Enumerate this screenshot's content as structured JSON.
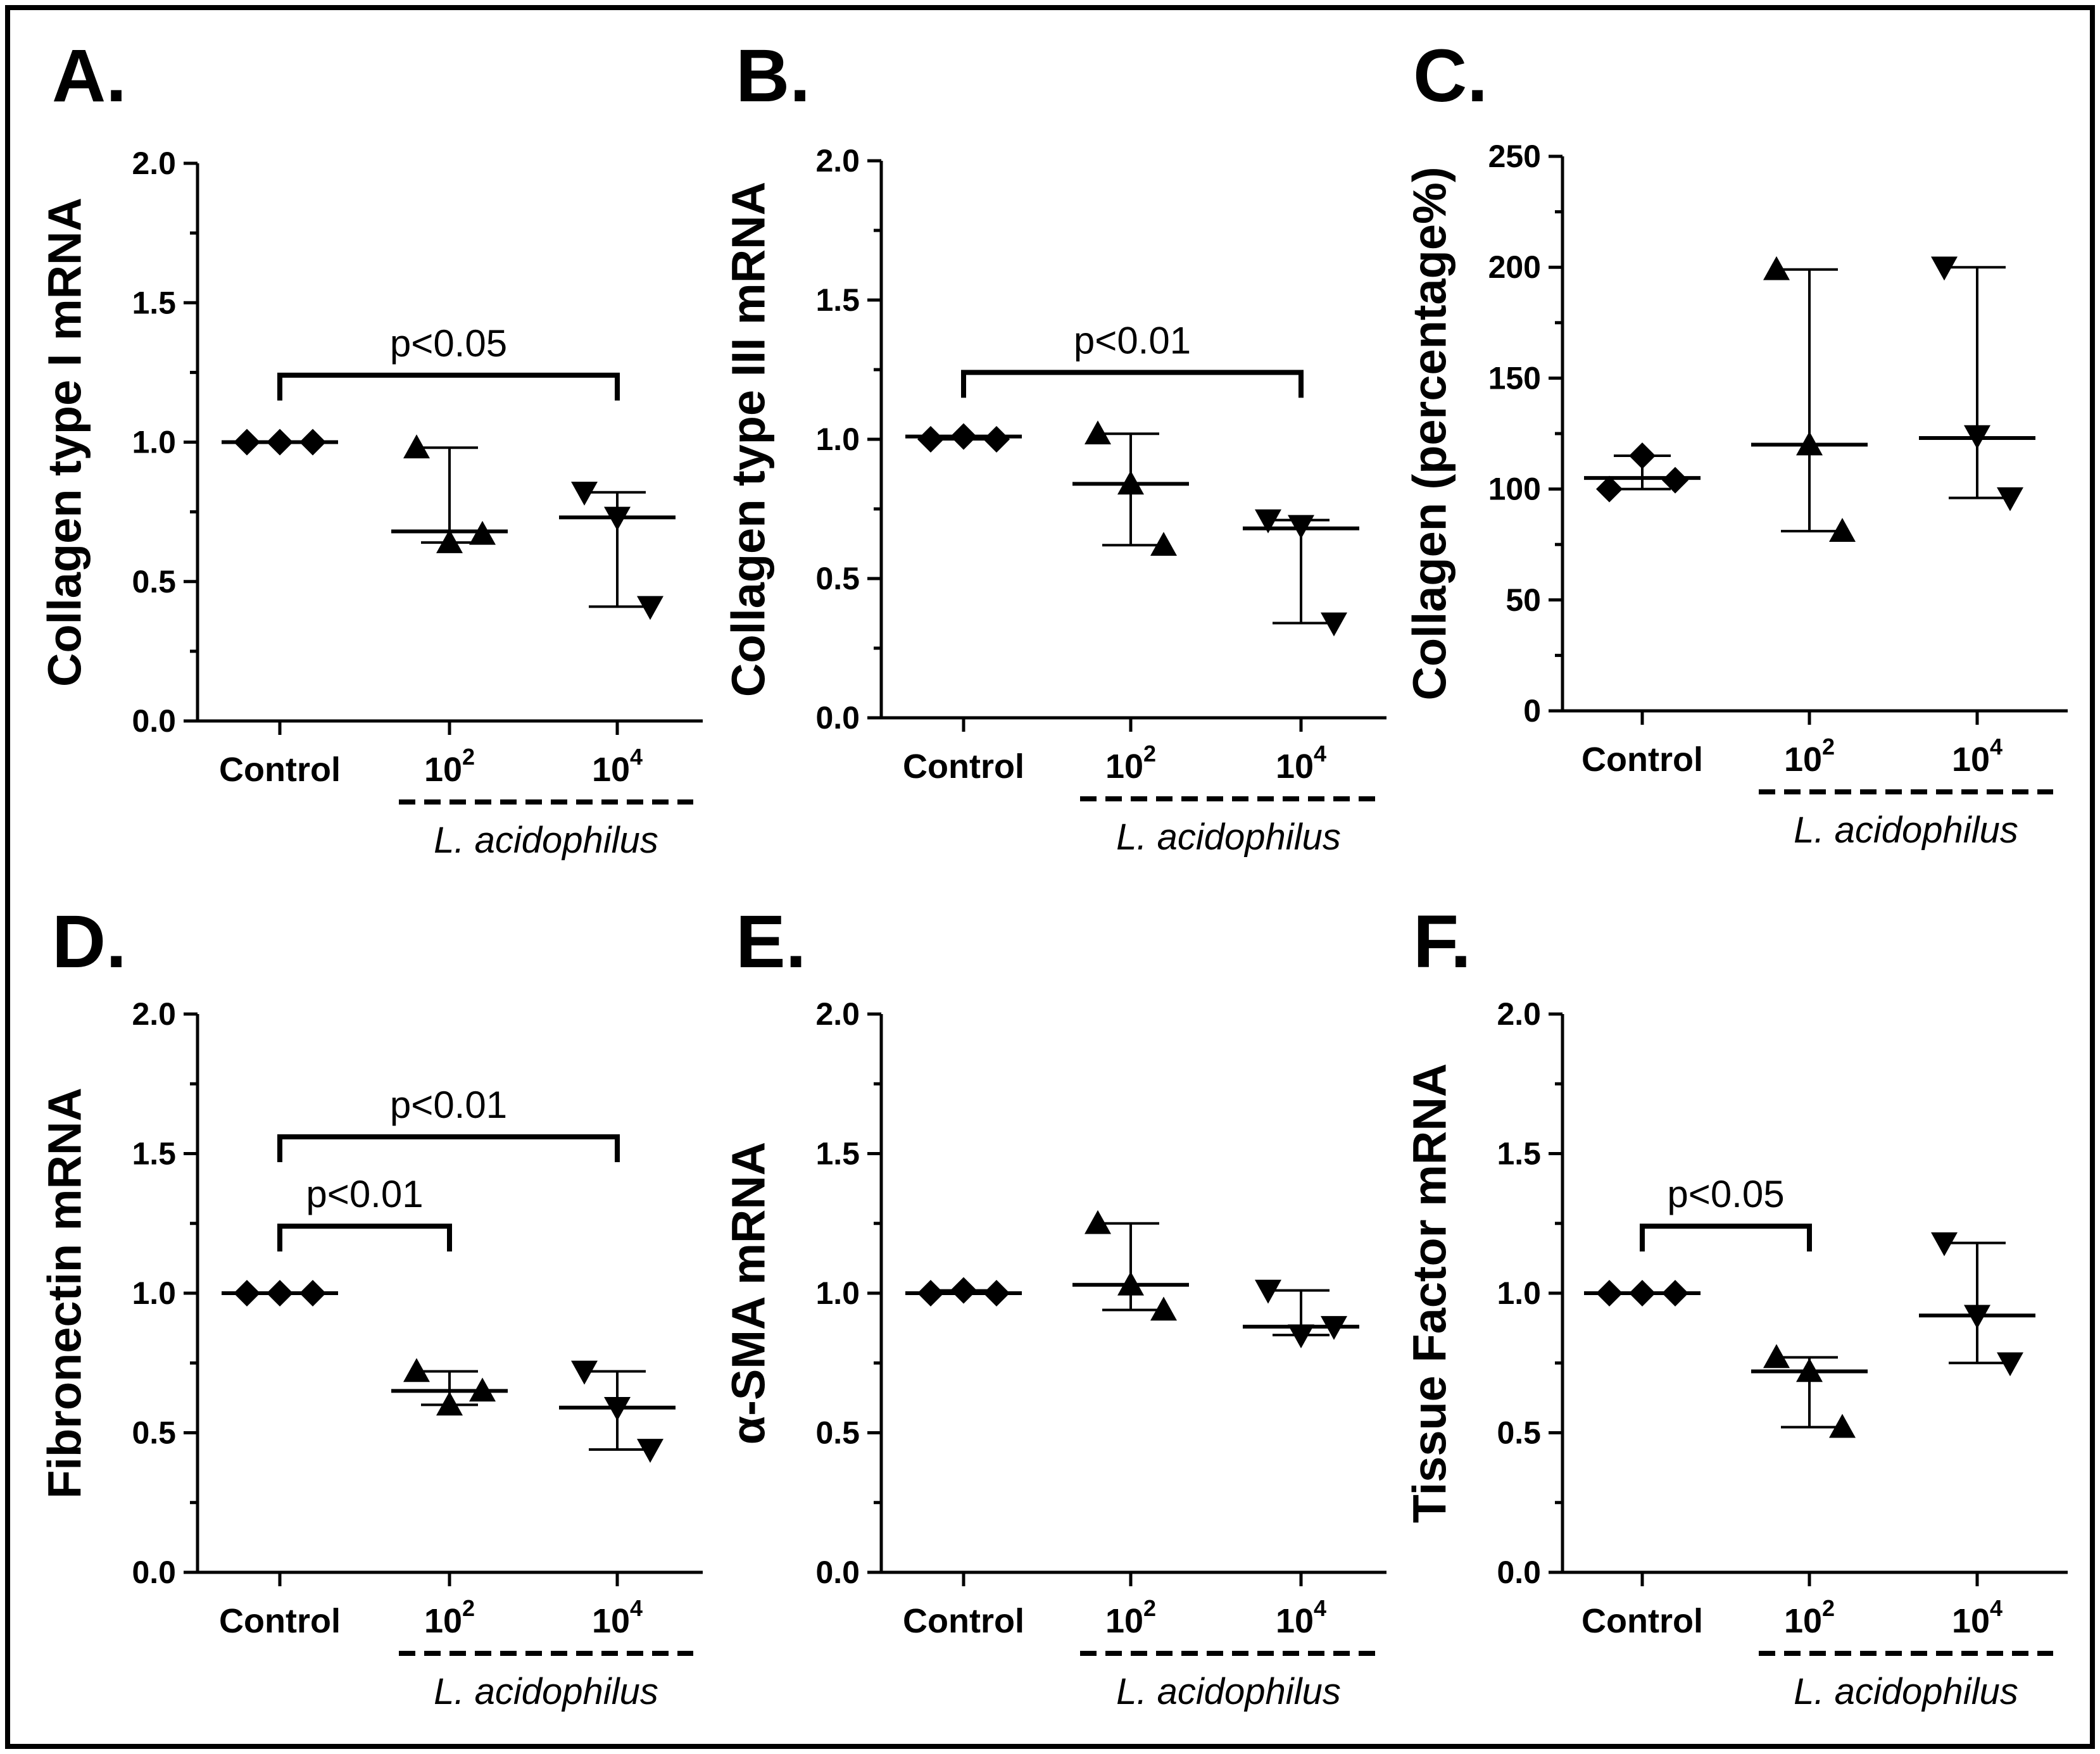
{
  "figure": {
    "categories": [
      "Control",
      "10",
      "10"
    ],
    "category_sups": [
      "",
      "2",
      "4"
    ],
    "group_label": "L. acidophilus"
  },
  "chart_data": [
    {
      "letter": "A.",
      "type": "scatter",
      "title": "",
      "ylabel": "Collagen type I mRNA",
      "ylim": [
        0,
        2
      ],
      "yticks": [
        "0.0",
        "0.5",
        "1.0",
        "1.5",
        "2.0"
      ],
      "groups": [
        {
          "category": "Control",
          "marker": "diamond",
          "points": [
            1.0,
            1.0,
            1.0
          ],
          "median": 1.0,
          "range": [
            1.0,
            1.0
          ]
        },
        {
          "category": "10^2",
          "marker": "triangle-up",
          "points": [
            0.98,
            0.64,
            0.67
          ],
          "median": 0.68,
          "range": [
            0.64,
            0.98
          ]
        },
        {
          "category": "10^4",
          "marker": "triangle-down",
          "points": [
            0.82,
            0.73,
            0.41
          ],
          "median": 0.73,
          "range": [
            0.41,
            0.82
          ]
        }
      ],
      "significance": [
        {
          "from": 0,
          "to": 2,
          "label": "p<0.05",
          "level": 1.24
        }
      ]
    },
    {
      "letter": "B.",
      "type": "scatter",
      "title": "",
      "ylabel": "Collagen type III mRNA",
      "ylim": [
        0,
        2
      ],
      "yticks": [
        "0.0",
        "0.5",
        "1.0",
        "1.5",
        "2.0"
      ],
      "groups": [
        {
          "category": "Control",
          "marker": "diamond",
          "points": [
            1.0,
            1.01,
            1.0
          ],
          "median": 1.01,
          "range": [
            1.0,
            1.01
          ]
        },
        {
          "category": "10^2",
          "marker": "triangle-up",
          "points": [
            1.02,
            0.84,
            0.62
          ],
          "median": 0.84,
          "range": [
            0.62,
            1.02
          ]
        },
        {
          "category": "10^4",
          "marker": "triangle-down",
          "points": [
            0.71,
            0.69,
            0.34
          ],
          "median": 0.68,
          "range": [
            0.34,
            0.71
          ]
        }
      ],
      "significance": [
        {
          "from": 0,
          "to": 2,
          "label": "p<0.01",
          "level": 1.24
        }
      ]
    },
    {
      "letter": "C.",
      "type": "scatter",
      "title": "",
      "ylabel": "Collagen (percentage%)",
      "ylim": [
        0,
        250
      ],
      "yticks": [
        "0",
        "50",
        "100",
        "150",
        "200",
        "250"
      ],
      "groups": [
        {
          "category": "Control",
          "marker": "diamond",
          "points": [
            100,
            115,
            104
          ],
          "median": 105,
          "range": [
            100,
            115
          ]
        },
        {
          "category": "10^2",
          "marker": "triangle-up",
          "points": [
            199,
            120,
            81
          ],
          "median": 120,
          "range": [
            81,
            199
          ]
        },
        {
          "category": "10^4",
          "marker": "triangle-down",
          "points": [
            200,
            124,
            96
          ],
          "median": 123,
          "range": [
            96,
            200
          ]
        }
      ],
      "significance": []
    },
    {
      "letter": "D.",
      "type": "scatter",
      "title": "",
      "ylabel": "Fibronectin mRNA",
      "ylim": [
        0,
        2
      ],
      "yticks": [
        "0.0",
        "0.5",
        "1.0",
        "1.5",
        "2.0"
      ],
      "groups": [
        {
          "category": "Control",
          "marker": "diamond",
          "points": [
            1.0,
            1.0,
            1.0
          ],
          "median": 1.0,
          "range": [
            1.0,
            1.0
          ]
        },
        {
          "category": "10^2",
          "marker": "triangle-up",
          "points": [
            0.72,
            0.6,
            0.65
          ],
          "median": 0.65,
          "range": [
            0.6,
            0.72
          ]
        },
        {
          "category": "10^4",
          "marker": "triangle-down",
          "points": [
            0.72,
            0.59,
            0.44
          ],
          "median": 0.59,
          "range": [
            0.44,
            0.72
          ]
        }
      ],
      "significance": [
        {
          "from": 0,
          "to": 1,
          "label": "p<0.01",
          "level": 1.24
        },
        {
          "from": 0,
          "to": 2,
          "label": "p<0.01",
          "level": 1.56
        }
      ]
    },
    {
      "letter": "E.",
      "type": "scatter",
      "title": "",
      "ylabel": "α-SMA mRNA",
      "ylim": [
        0,
        2
      ],
      "yticks": [
        "0.0",
        "0.5",
        "1.0",
        "1.5",
        "2.0"
      ],
      "groups": [
        {
          "category": "Control",
          "marker": "diamond",
          "points": [
            1.0,
            1.01,
            1.0
          ],
          "median": 1.0,
          "range": [
            1.0,
            1.01
          ]
        },
        {
          "category": "10^2",
          "marker": "triangle-up",
          "points": [
            1.25,
            1.03,
            0.94
          ],
          "median": 1.03,
          "range": [
            0.94,
            1.25
          ]
        },
        {
          "category": "10^4",
          "marker": "triangle-down",
          "points": [
            1.01,
            0.85,
            0.88
          ],
          "median": 0.88,
          "range": [
            0.85,
            1.01
          ]
        }
      ],
      "significance": []
    },
    {
      "letter": "F.",
      "type": "scatter",
      "title": "",
      "ylabel": "Tissue Factor mRNA",
      "ylim": [
        0,
        2
      ],
      "yticks": [
        "0.0",
        "0.5",
        "1.0",
        "1.5",
        "2.0"
      ],
      "groups": [
        {
          "category": "Control",
          "marker": "diamond",
          "points": [
            1.0,
            1.0,
            1.0
          ],
          "median": 1.0,
          "range": [
            1.0,
            1.0
          ]
        },
        {
          "category": "10^2",
          "marker": "triangle-up",
          "points": [
            0.77,
            0.72,
            0.52
          ],
          "median": 0.72,
          "range": [
            0.52,
            0.77
          ]
        },
        {
          "category": "10^4",
          "marker": "triangle-down",
          "points": [
            1.18,
            0.92,
            0.75
          ],
          "median": 0.92,
          "range": [
            0.75,
            1.18
          ]
        }
      ],
      "significance": [
        {
          "from": 0,
          "to": 1,
          "label": "p<0.05",
          "level": 1.24
        }
      ]
    }
  ]
}
